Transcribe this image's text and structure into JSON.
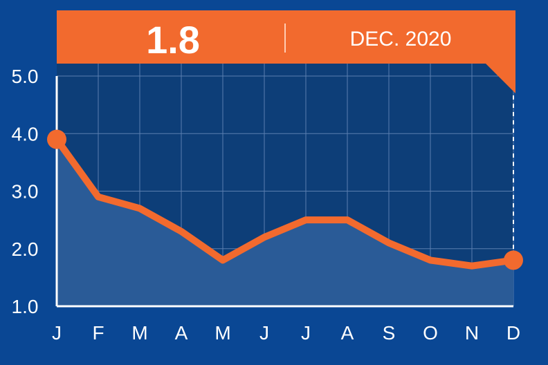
{
  "banner": {
    "value": "1.8",
    "date": "DEC. 2020"
  },
  "colors": {
    "background": "#0a4794",
    "plot_background": "#0d3e78",
    "accent": "#f26a2e",
    "area_fill": "#2a5b97",
    "grid": "#5a7fb0",
    "text": "#ffffff"
  },
  "chart_data": {
    "type": "line",
    "categories": [
      "J",
      "F",
      "M",
      "A",
      "M",
      "J",
      "J",
      "A",
      "S",
      "O",
      "N",
      "D"
    ],
    "values": [
      3.9,
      2.9,
      2.7,
      2.3,
      1.8,
      2.2,
      2.5,
      2.5,
      2.1,
      1.8,
      1.7,
      1.8
    ],
    "y_ticks": [
      "5.0",
      "4.0",
      "3.0",
      "2.0",
      "1.0"
    ],
    "ylim": [
      1.0,
      5.0
    ],
    "grid": true,
    "area_fill": true,
    "highlight_index": 11
  }
}
